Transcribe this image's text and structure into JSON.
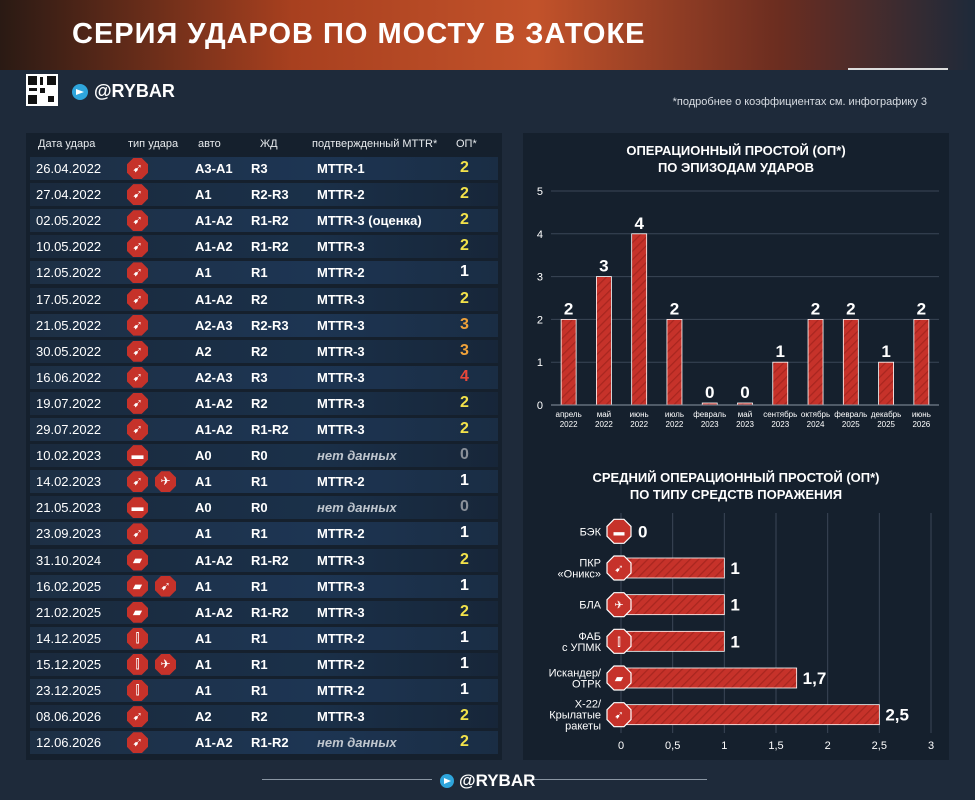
{
  "header": {
    "title": "СЕРИЯ УДАРОВ ПО МОСТУ В ЗАТОКЕ"
  },
  "brand": {
    "handle": "@RYBAR",
    "note": "*подробнее о коэффициентах см. инфографику 3"
  },
  "table": {
    "headers": [
      "Дата удара",
      "тип удара",
      "авто",
      "ЖД",
      "подтвержденный MTTR*",
      "ОП*"
    ],
    "rows": [
      {
        "date": "26.04.2022",
        "types": [
          "missile"
        ],
        "auto": "А3-А1",
        "rail": "R3",
        "mttr": "MTTR-1",
        "op": "2",
        "na": false
      },
      {
        "date": "27.04.2022",
        "types": [
          "missile"
        ],
        "auto": "А1",
        "rail": "R2-R3",
        "mttr": "MTTR-2",
        "op": "2",
        "na": false
      },
      {
        "date": "02.05.2022",
        "types": [
          "missile"
        ],
        "auto": "А1-А2",
        "rail": "R1-R2",
        "mttr": "MTTR-3 (оценка)",
        "op": "2",
        "na": false
      },
      {
        "date": "10.05.2022",
        "types": [
          "missile"
        ],
        "auto": "А1-А2",
        "rail": "R1-R2",
        "mttr": "MTTR-3",
        "op": "2",
        "na": false
      },
      {
        "date": "12.05.2022",
        "types": [
          "missile"
        ],
        "auto": "А1",
        "rail": "R1",
        "mttr": "MTTR-2",
        "op": "1",
        "na": false
      },
      {
        "date": "17.05.2022",
        "types": [
          "missile"
        ],
        "auto": "А1-А2",
        "rail": "R2",
        "mttr": "MTTR-3",
        "op": "2",
        "na": false
      },
      {
        "date": "21.05.2022",
        "types": [
          "missile"
        ],
        "auto": "А2-А3",
        "rail": "R2-R3",
        "mttr": "MTTR-3",
        "op": "3",
        "na": false
      },
      {
        "date": "30.05.2022",
        "types": [
          "missile"
        ],
        "auto": "А2",
        "rail": "R2",
        "mttr": "MTTR-3",
        "op": "3",
        "na": false
      },
      {
        "date": "16.06.2022",
        "types": [
          "missile"
        ],
        "auto": "А2-А3",
        "rail": "R3",
        "mttr": "MTTR-3",
        "op": "4",
        "na": false
      },
      {
        "date": "19.07.2022",
        "types": [
          "missile"
        ],
        "auto": "А1-А2",
        "rail": "R2",
        "mttr": "MTTR-3",
        "op": "2",
        "na": false
      },
      {
        "date": "29.07.2022",
        "types": [
          "missile"
        ],
        "auto": "А1-А2",
        "rail": "R1-R2",
        "mttr": "MTTR-3",
        "op": "2",
        "na": false
      },
      {
        "date": "10.02.2023",
        "types": [
          "boat"
        ],
        "auto": "А0",
        "rail": "R0",
        "mttr": "нет данных",
        "op": "0",
        "na": true
      },
      {
        "date": "14.02.2023",
        "types": [
          "missile",
          "uav"
        ],
        "auto": "А1",
        "rail": "R1",
        "mttr": "MTTR-2",
        "op": "1",
        "na": false
      },
      {
        "date": "21.05.2023",
        "types": [
          "boat"
        ],
        "auto": "А0",
        "rail": "R0",
        "mttr": "нет данных",
        "op": "0",
        "na": true
      },
      {
        "date": "23.09.2023",
        "types": [
          "missile"
        ],
        "auto": "А1",
        "rail": "R1",
        "mttr": "MTTR-2",
        "op": "1",
        "na": false
      },
      {
        "date": "31.10.2024",
        "types": [
          "launcher"
        ],
        "auto": "А1-А2",
        "rail": "R1-R2",
        "mttr": "MTTR-3",
        "op": "2",
        "na": false
      },
      {
        "date": "16.02.2025",
        "types": [
          "launcher",
          "missile"
        ],
        "auto": "А1",
        "rail": "R1",
        "mttr": "MTTR-3",
        "op": "1",
        "na": false
      },
      {
        "date": "21.02.2025",
        "types": [
          "launcher"
        ],
        "auto": "А1-А2",
        "rail": "R1-R2",
        "mttr": "MTTR-3",
        "op": "2",
        "na": false
      },
      {
        "date": "14.12.2025",
        "types": [
          "bombs"
        ],
        "auto": "А1",
        "rail": "R1",
        "mttr": "MTTR-2",
        "op": "1",
        "na": false
      },
      {
        "date": "15.12.2025",
        "types": [
          "bombs",
          "uav"
        ],
        "auto": "А1",
        "rail": "R1",
        "mttr": "MTTR-2",
        "op": "1",
        "na": false
      },
      {
        "date": "23.12.2025",
        "types": [
          "bombs"
        ],
        "auto": "А1",
        "rail": "R1",
        "mttr": "MTTR-2",
        "op": "1",
        "na": false
      },
      {
        "date": "08.06.2026",
        "types": [
          "missile"
        ],
        "auto": "А2",
        "rail": "R2",
        "mttr": "MTTR-3",
        "op": "2",
        "na": false
      },
      {
        "date": "12.06.2026",
        "types": [
          "missile"
        ],
        "auto": "А1-А2",
        "rail": "R1-R2",
        "mttr": "нет данных",
        "op": "2",
        "na": true
      }
    ]
  },
  "colors": {
    "op0": "#8a9099",
    "op1": "#ffffff",
    "op2": "#f3e24a",
    "op3": "#f0a23a",
    "op4": "#e8473a",
    "bar": "#c6322a",
    "icon": "#c6322a"
  },
  "icons": {
    "missile": "missile-icon",
    "boat": "boat-icon",
    "uav": "uav-icon",
    "launcher": "launcher-icon",
    "bombs": "bombs-icon"
  },
  "chart_data": [
    {
      "type": "bar",
      "title": "ОПЕРАЦИОННЫЙ ПРОСТОЙ (ОП*)",
      "subtitle": "ПО ЭПИЗОДАМ УДАРОВ",
      "categories": [
        {
          "month": "апрель",
          "year": "2022"
        },
        {
          "month": "май",
          "year": "2022"
        },
        {
          "month": "июнь",
          "year": "2022"
        },
        {
          "month": "июль",
          "year": "2022"
        },
        {
          "month": "февраль",
          "year": "2023"
        },
        {
          "month": "май",
          "year": "2023"
        },
        {
          "month": "сентябрь",
          "year": "2023"
        },
        {
          "month": "октябрь",
          "year": "2024"
        },
        {
          "month": "февраль",
          "year": "2025"
        },
        {
          "month": "декабрь",
          "year": "2025"
        },
        {
          "month": "июнь",
          "year": "2026"
        }
      ],
      "values": [
        2,
        3,
        4,
        2,
        0,
        0,
        1,
        2,
        2,
        1,
        2
      ],
      "ylim": [
        0,
        5
      ],
      "yticks": [
        "0",
        "1",
        "2",
        "3",
        "4",
        "5"
      ]
    },
    {
      "type": "bar",
      "orientation": "horizontal",
      "title": "СРЕДНИЙ ОПЕРАЦИОННЫЙ ПРОСТОЙ (ОП*)",
      "subtitle": "ПО ТИПУ СРЕДСТВ ПОРАЖЕНИЯ",
      "categories": [
        {
          "label": [
            "БЭК"
          ],
          "icon": "boat-icon"
        },
        {
          "label": [
            "ПКР",
            "«Оникс»"
          ],
          "icon": "missile-icon"
        },
        {
          "label": [
            "БЛА"
          ],
          "icon": "uav-icon"
        },
        {
          "label": [
            "ФАБ",
            "с УПМК"
          ],
          "icon": "bombs-icon"
        },
        {
          "label": [
            "Искандер/",
            "ОТРК"
          ],
          "icon": "launcher-icon"
        },
        {
          "label": [
            "Х-22/",
            "Крылатые",
            "ракеты"
          ],
          "icon": "missile-icon"
        }
      ],
      "values": [
        0,
        1,
        1,
        1,
        1.7,
        2.5
      ],
      "value_labels": [
        "0",
        "1",
        "1",
        "1",
        "1,7",
        "2,5"
      ],
      "xlim": [
        0,
        3
      ],
      "xticks": [
        "0",
        "0,5",
        "1",
        "1,5",
        "2",
        "2,5",
        "3"
      ]
    }
  ]
}
